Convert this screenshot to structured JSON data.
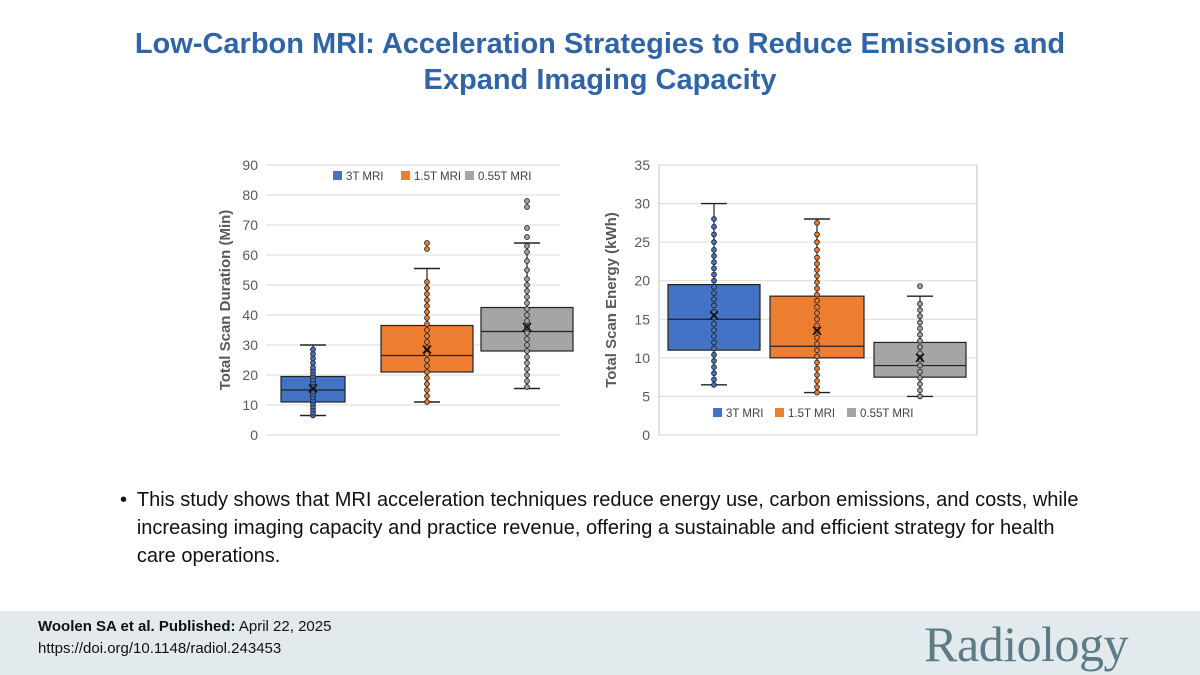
{
  "title": {
    "line1": "Low-Carbon MRI: Acceleration Strategies to Reduce Emissions and",
    "line2": "Expand Imaging Capacity"
  },
  "colors": {
    "title": "#2f64a8",
    "series": [
      "#4472c4",
      "#ed7d31",
      "#a5a5a5"
    ],
    "footer_bg": "#e2eaee",
    "logo": "#5c7c85"
  },
  "chart_data": [
    {
      "type": "box",
      "ylabel": "Total Scan Duration (Min)",
      "ylim": [
        0,
        90
      ],
      "yticks": [
        0,
        10,
        20,
        30,
        40,
        50,
        60,
        70,
        80,
        90
      ],
      "legend": {
        "placement": "top-right",
        "labels": [
          "3T MRI",
          "1.5T MRI",
          "0.55T MRI"
        ]
      },
      "series": [
        {
          "name": "3T MRI",
          "min": 6.5,
          "q1": 11,
          "median": 15,
          "mean": 15.5,
          "q3": 19.5,
          "max": 30,
          "points": [
            6.5,
            7.5,
            8.5,
            9.5,
            10.5,
            11.5,
            12.5,
            13.5,
            14.5,
            15.5,
            16.5,
            17.5,
            18.5,
            19.5,
            20.5,
            21.5,
            22.5,
            24,
            25.5,
            27,
            28.5
          ],
          "outliers": []
        },
        {
          "name": "1.5T MRI",
          "min": 11,
          "q1": 21,
          "median": 26.5,
          "mean": 28.5,
          "q3": 36.5,
          "max": 55.5,
          "points": [
            11,
            13,
            15,
            17,
            19,
            21,
            23,
            25,
            27,
            29,
            31,
            33,
            35,
            37,
            39,
            41,
            43,
            45,
            47,
            49,
            51
          ],
          "outliers": [
            62,
            64
          ]
        },
        {
          "name": "0.55T MRI",
          "min": 15.5,
          "q1": 28,
          "median": 34.5,
          "mean": 36,
          "q3": 42.5,
          "max": 64,
          "points": [
            16,
            18,
            20,
            22,
            24,
            26,
            28,
            30,
            32,
            34,
            36,
            38,
            40,
            42,
            44,
            46,
            48,
            50,
            52,
            55,
            58,
            61,
            63
          ],
          "outliers": [
            66,
            69,
            76,
            78
          ]
        }
      ]
    },
    {
      "type": "box",
      "ylabel": "Total Scan Energy (kWh)",
      "ylim": [
        0,
        35
      ],
      "yticks": [
        0,
        5,
        10,
        15,
        20,
        25,
        30,
        35
      ],
      "legend": {
        "placement": "bottom-center",
        "labels": [
          "3T MRI",
          "1.5T MRI",
          "0.55T MRI"
        ]
      },
      "series": [
        {
          "name": "3T MRI",
          "min": 6.5,
          "q1": 11,
          "median": 15,
          "mean": 15.5,
          "q3": 19.5,
          "max": 30,
          "points": [
            6.5,
            7.2,
            8,
            8.8,
            9.6,
            10.4,
            11.2,
            12,
            12.8,
            13.6,
            14.4,
            15.2,
            16,
            16.8,
            17.6,
            18.4,
            19.2,
            20,
            20.8,
            21.6,
            22.4,
            23.2,
            24,
            25,
            26,
            27,
            28
          ],
          "outliers": []
        },
        {
          "name": "1.5T MRI",
          "min": 5.5,
          "q1": 10,
          "median": 11.5,
          "mean": 13.5,
          "q3": 18,
          "max": 28,
          "points": [
            5.5,
            6.2,
            7,
            7.8,
            8.6,
            9.4,
            10.2,
            11,
            11.8,
            12.6,
            13.4,
            14.2,
            15,
            15.8,
            16.6,
            17.4,
            18.2,
            19,
            19.8,
            20.6,
            21.4,
            22.2,
            23,
            24,
            25,
            26,
            27.5
          ],
          "outliers": []
        },
        {
          "name": "0.55T MRI",
          "min": 5,
          "q1": 7.5,
          "median": 9,
          "mean": 10,
          "q3": 12,
          "max": 18,
          "points": [
            5,
            5.8,
            6.6,
            7.4,
            8.2,
            9,
            9.8,
            10.6,
            11.4,
            12.2,
            13,
            13.8,
            14.6,
            15.4,
            16.2,
            17
          ],
          "outliers": [
            19.3
          ]
        }
      ]
    }
  ],
  "bullet": {
    "symbol": "•",
    "text": "This study shows that MRI acceleration techniques reduce energy use, carbon emissions, and costs, while increasing imaging capacity and practice revenue, offering a sustainable and efficient strategy for health care operations."
  },
  "footer": {
    "authors": "Woolen SA et al. Published:",
    "date": " April 22, 2025",
    "doi": "https://doi.org/10.1148/radiol.243453",
    "logo": "Radiology"
  }
}
